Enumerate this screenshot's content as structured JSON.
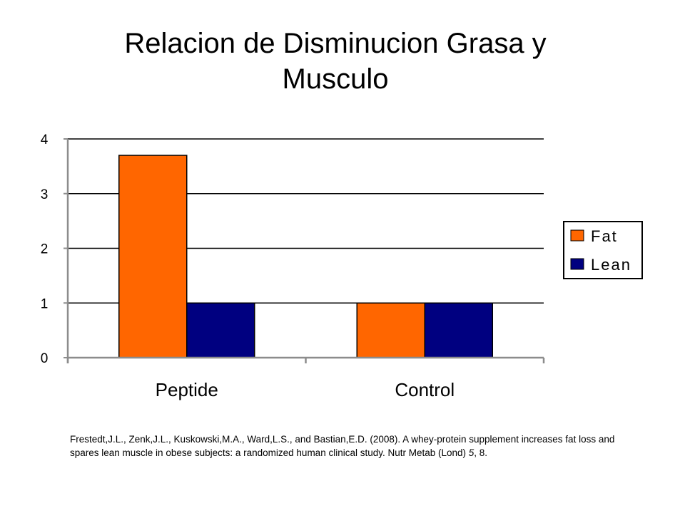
{
  "slide": {
    "title_line1": "Relacion de Disminucion Grasa y",
    "title_line2": "Musculo"
  },
  "chart_data": {
    "type": "bar",
    "categories": [
      "Peptide",
      "Control"
    ],
    "series": [
      {
        "name": "Fat",
        "values": [
          3.7,
          1.0
        ],
        "color": "#ff6600"
      },
      {
        "name": "Lean",
        "values": [
          1.0,
          1.0
        ],
        "color": "#000080"
      }
    ],
    "ylim": [
      0,
      4
    ],
    "yticks": [
      "0",
      "1",
      "2",
      "3",
      "4"
    ],
    "grid": true,
    "legend_position": "right",
    "title": "",
    "xlabel": "",
    "ylabel": ""
  },
  "citation": {
    "text_before_volume": "Frestedt,J.L., Zenk,J.L., Kuskowski,M.A., Ward,L.S., and Bastian,E.D. (2008). A whey-protein supplement increases fat loss and spares lean muscle in obese subjects: a randomized human clinical study. Nutr Metab (Lond) ",
    "volume": "5",
    "text_after_volume": ", 8."
  }
}
